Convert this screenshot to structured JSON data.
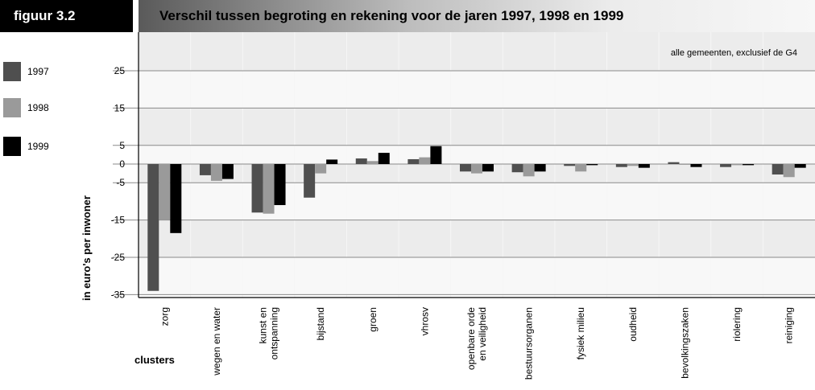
{
  "figure_label": "figuur 3.2",
  "title": "Verschil tussen begroting en rekening voor de jaren 1997, 1998 en 1999",
  "chart_data": {
    "type": "bar",
    "title": "Verschil tussen begroting en rekening voor de jaren 1997, 1998 en 1999",
    "subtitle": "alle gemeenten, exclusief de G4",
    "xlabel": "clusters",
    "ylabel": "in euro's per inwoner",
    "ylim": [
      -35,
      35
    ],
    "yticks": [
      25,
      15,
      5,
      0,
      -5,
      -15,
      -25,
      -35
    ],
    "legend_position": "left",
    "categories": [
      "zorg",
      "wegen en water",
      "kunst en\nontspanning",
      "bijstand",
      "groen",
      "vhrosv",
      "openbare orde\nen veiligheid",
      "bestuursorganen",
      "fysiek milieu",
      "oudheid",
      "bevolkingszaken",
      "riolering",
      "reiniging"
    ],
    "series": [
      {
        "name": "1997",
        "color": "#4f4f4f",
        "values": [
          -34,
          -3,
          -13,
          -9,
          1.5,
          1.3,
          -2,
          -2.2,
          -0.5,
          -0.8,
          0.5,
          -0.8,
          -2.8
        ]
      },
      {
        "name": "1998",
        "color": "#9a9a9a",
        "values": [
          -15,
          -4.5,
          -13.3,
          -2.5,
          0.8,
          1.8,
          -2.5,
          -3.3,
          -2,
          -0.5,
          -0.2,
          -0.3,
          -3.5
        ]
      },
      {
        "name": "1999",
        "color": "#000000",
        "values": [
          -18.5,
          -4,
          -11,
          1.2,
          3,
          4.8,
          -2,
          -2,
          -0.3,
          -1,
          -0.8,
          -0.3,
          -1
        ]
      }
    ]
  }
}
